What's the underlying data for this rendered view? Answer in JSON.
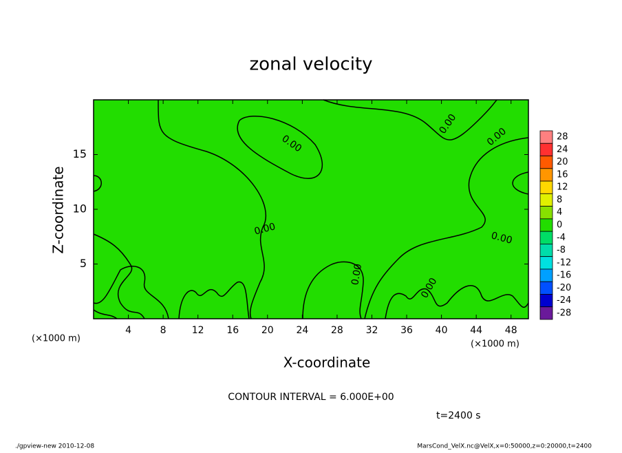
{
  "chart_data": {
    "type": "contour",
    "title": "zonal velocity",
    "xlabel": "X-coordinate",
    "ylabel": "Z-coordinate",
    "x_unit": "(×1000 m)",
    "xlim": [
      0,
      50
    ],
    "xticks": [
      4,
      8,
      12,
      16,
      20,
      24,
      28,
      32,
      36,
      40,
      44,
      48
    ],
    "ylim": [
      0,
      20
    ],
    "yticks": [
      5,
      10,
      15
    ],
    "contour_level": 0,
    "contour_label": "0.00",
    "contour_interval_text": "CONTOUR INTERVAL = 6.000E+00",
    "time_text": "t=2400 s",
    "colorbar": {
      "levels": [
        28,
        24,
        20,
        16,
        12,
        8,
        4,
        0,
        -4,
        -8,
        -12,
        -16,
        -20,
        -24,
        -28
      ],
      "colors": [
        "#ff8080",
        "#ff3030",
        "#ff5a00",
        "#ff9600",
        "#ffd800",
        "#e0f000",
        "#88e000",
        "#22dd00",
        "#00dd66",
        "#00ddaa",
        "#00e0e0",
        "#00a0ff",
        "#0050ff",
        "#0000d0",
        "#6a1a9a"
      ]
    },
    "fill_level_index": 7,
    "footer_left": "./gpview-new  2010-12-08",
    "footer_right": "MarsCond_VelX.nc@VelX,x=0:50000,z=0:20000,t=2400"
  }
}
